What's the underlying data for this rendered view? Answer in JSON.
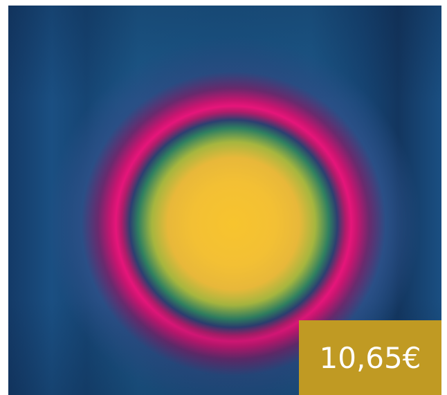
{
  "product": {
    "price": "10,65€",
    "badge_color": "#c09a23"
  }
}
